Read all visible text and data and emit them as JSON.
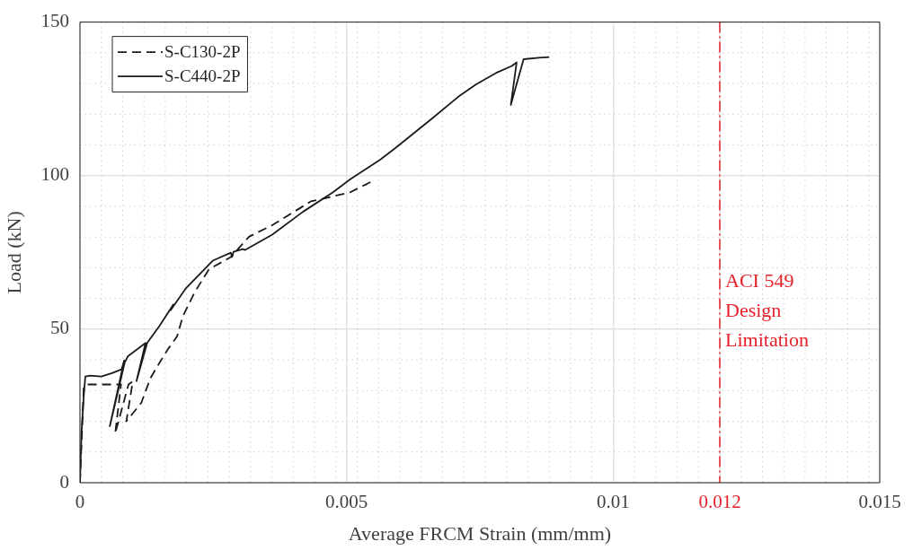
{
  "chart_data": {
    "type": "line",
    "xlabel": "Average FRCM Strain (mm/mm)",
    "ylabel": "Load (kN)",
    "xlim": [
      0,
      0.015
    ],
    "xticks": [
      0,
      0.005,
      0.01,
      0.012,
      0.015
    ],
    "ylim": [
      0,
      150
    ],
    "yticks": [
      0,
      50,
      100,
      150
    ],
    "grid": true,
    "legend": "top left",
    "series": [
      {
        "name": "S-C130-2P",
        "color": "#1a1a1a",
        "line_style": "dashed",
        "x": [
          0,
          7e-05,
          0.00013,
          0.0004,
          0.00077,
          0.00066,
          0.00091,
          0.00099,
          0.00087,
          0.00115,
          0.00132,
          0.00149,
          0.00165,
          0.00182,
          0.00193,
          0.00215,
          0.00242,
          0.00283,
          0.00317,
          0.00361,
          0.00433,
          0.00449,
          0.00506,
          0.00546,
          0.00536
        ],
        "values": [
          0,
          31,
          32,
          32,
          32,
          16,
          32,
          33,
          20,
          26,
          34,
          39,
          43.5,
          47.6,
          54.2,
          62,
          69.5,
          73.5,
          80.1,
          83.9,
          91.6,
          92.2,
          94.5,
          98,
          97
        ]
      },
      {
        "name": "S-C440-2P",
        "color": "#1a1a1a",
        "line_style": "solid",
        "x": [
          0,
          3e-05,
          7e-05,
          0.0001,
          0.00019,
          0.0004,
          0.0006,
          0.00078,
          0.00083,
          0.00056,
          0.00084,
          0.0009,
          0.00123,
          0.00106,
          0.00126,
          0.0015,
          0.00175,
          0.0017,
          0.00199,
          0.00249,
          0.00283,
          0.00285,
          0.00288,
          0.00305,
          0.0031,
          0.0036,
          0.00418,
          0.00474,
          0.00507,
          0.00563,
          0.00591,
          0.00659,
          0.00709,
          0.00743,
          0.0078,
          0.0081,
          0.00819,
          0.00808,
          0.00832,
          0.0086,
          0.0088
        ],
        "values": [
          0,
          16.7,
          28,
          34.6,
          34.9,
          34.6,
          35.7,
          36.9,
          39.8,
          18.4,
          39.2,
          41.2,
          45.5,
          33.1,
          45.5,
          51.3,
          58,
          56.2,
          63.4,
          72.3,
          74.9,
          73.5,
          75.2,
          76.1,
          75.8,
          80.7,
          88.2,
          94.5,
          98.8,
          105.2,
          108.9,
          118.4,
          125.6,
          129.7,
          133.4,
          135.7,
          136.9,
          123,
          137.9,
          138.4,
          138.6
        ]
      }
    ],
    "ref_lines": [
      {
        "axis": "x",
        "value": 0.012,
        "label": "ACI 549\nDesign\nLimitation",
        "color": "#e8202a",
        "line_style": "dashdot"
      }
    ]
  }
}
